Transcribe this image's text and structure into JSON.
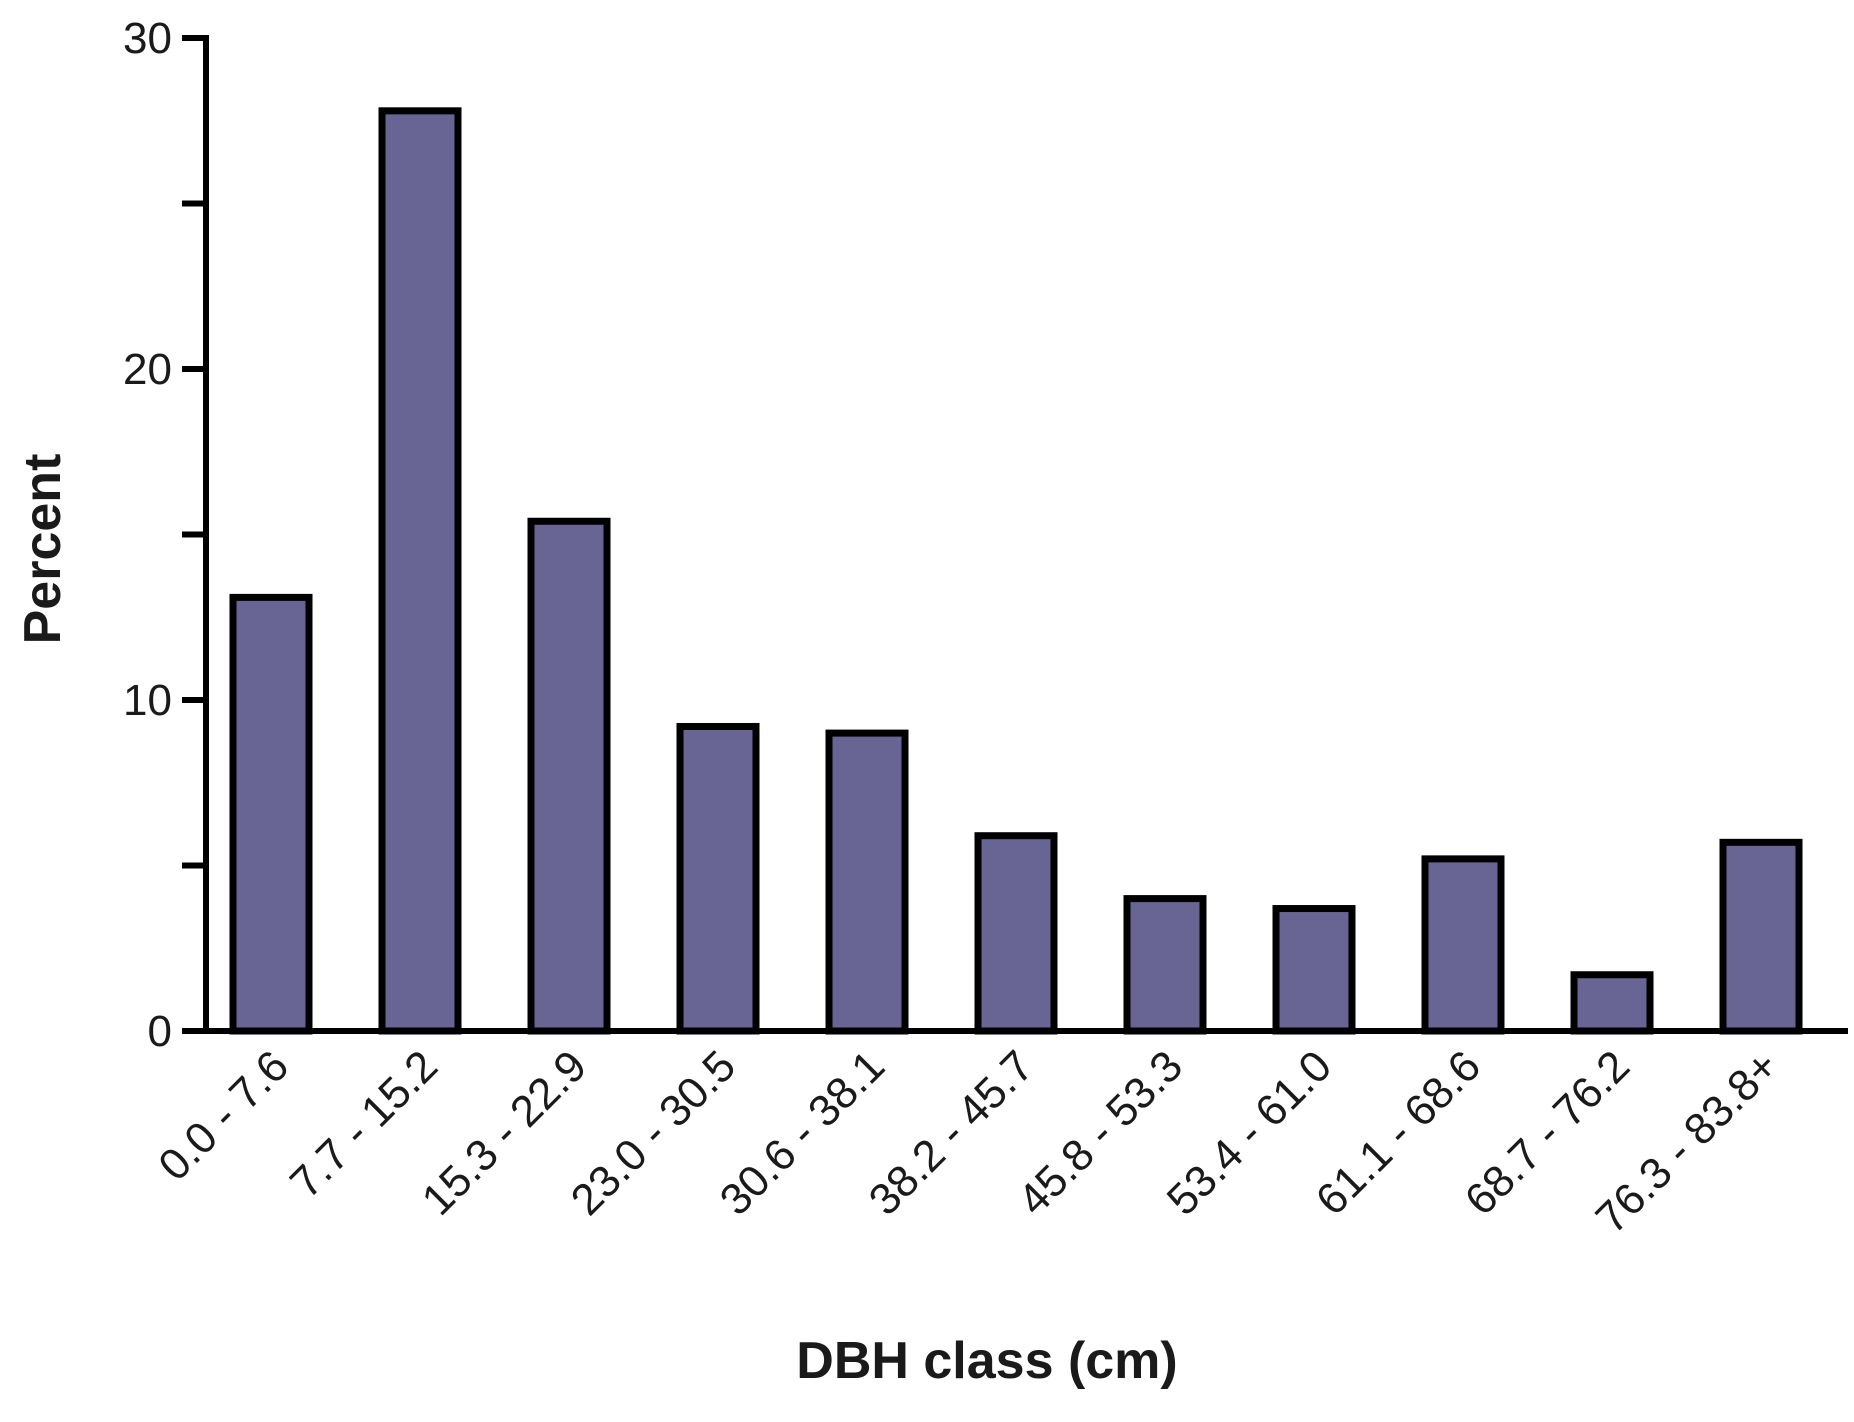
{
  "chart_data": {
    "type": "bar",
    "categories": [
      "0.0 - 7.6",
      "7.7 - 15.2",
      "15.3 - 22.9",
      "23.0 - 30.5",
      "30.6 - 38.1",
      "38.2 - 45.7",
      "45.8 - 53.3",
      "53.4 - 61.0",
      "61.1 - 68.6",
      "68.7 - 76.2",
      "76.3 - 83.8+"
    ],
    "values": [
      13.1,
      27.8,
      15.4,
      9.2,
      9.0,
      5.9,
      4.0,
      3.7,
      5.2,
      1.7,
      5.7
    ],
    "title": "",
    "xlabel": "DBH class (cm)",
    "ylabel": "Percent",
    "ylim": [
      0,
      30
    ],
    "yticks_labeled": [
      0,
      10,
      20,
      30
    ],
    "yticks_minor": [
      5,
      15,
      25
    ],
    "grid": false,
    "legend": "none",
    "bar_color": "#686494",
    "edge_color": "#000000"
  }
}
